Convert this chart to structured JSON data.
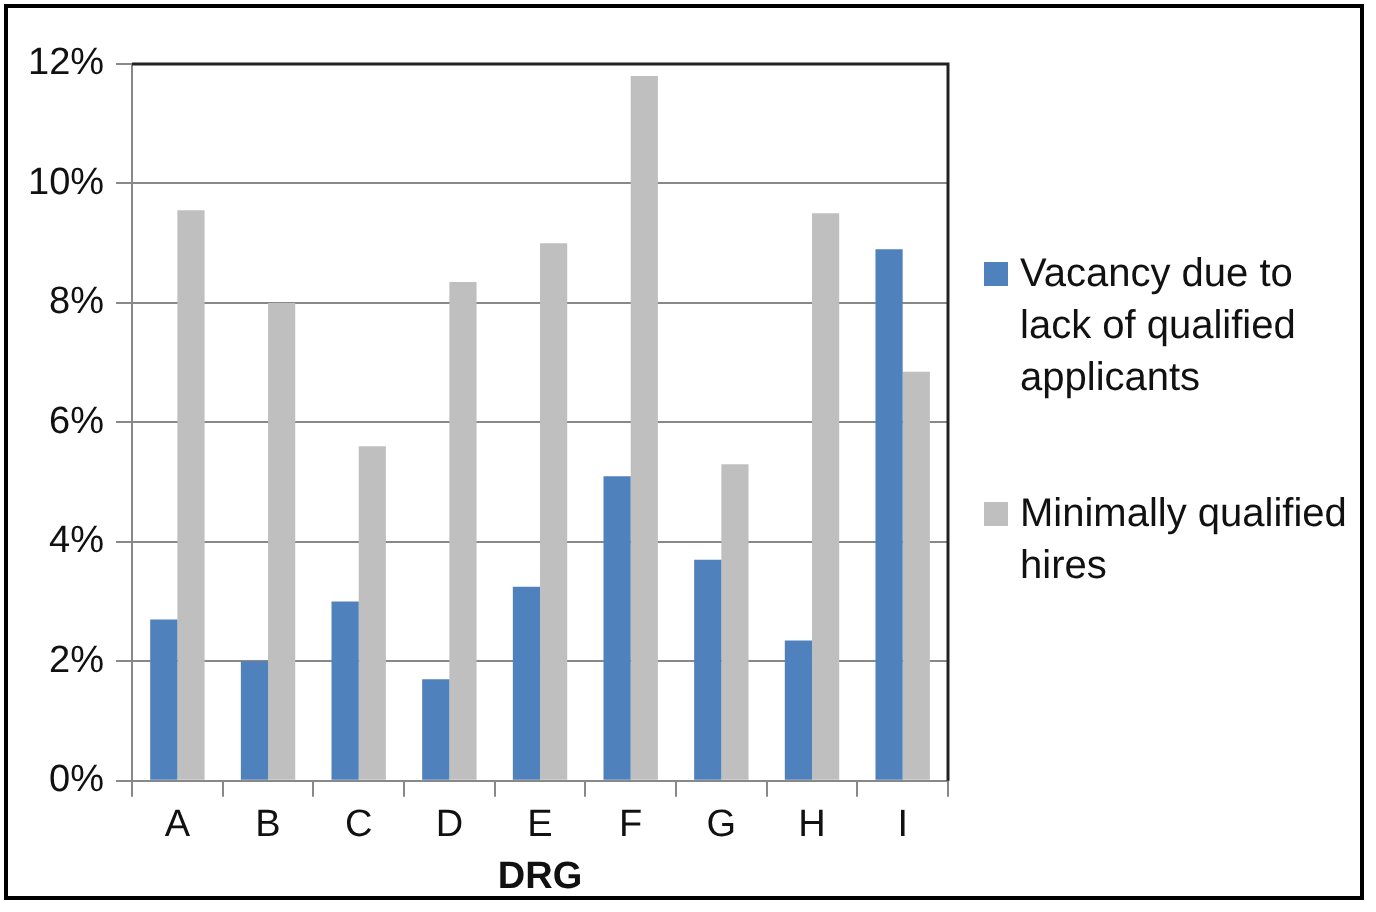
{
  "chart_data": {
    "type": "bar",
    "xlabel": "DRG",
    "categories": [
      "A",
      "B",
      "C",
      "D",
      "E",
      "F",
      "G",
      "H",
      "I"
    ],
    "series": [
      {
        "name": "Vacancy due to lack of qualified applicants",
        "color": "#4f81bd",
        "values": [
          2.7,
          2.0,
          3.0,
          1.7,
          3.25,
          5.1,
          3.7,
          2.35,
          8.9
        ]
      },
      {
        "name": "Minimally qualified hires",
        "color": "#bfbfbf",
        "values": [
          9.55,
          8.0,
          5.6,
          8.35,
          9.0,
          11.8,
          5.3,
          9.5,
          6.85
        ]
      }
    ],
    "ylim": [
      0,
      12
    ],
    "yticks": [
      {
        "value": 0,
        "label": "0%"
      },
      {
        "value": 2,
        "label": "2%"
      },
      {
        "value": 4,
        "label": "4%"
      },
      {
        "value": 6,
        "label": "6%"
      },
      {
        "value": 8,
        "label": "8%"
      },
      {
        "value": 10,
        "label": "10%"
      },
      {
        "value": 12,
        "label": "12%"
      }
    ],
    "grid": "y",
    "legend": "right"
  }
}
